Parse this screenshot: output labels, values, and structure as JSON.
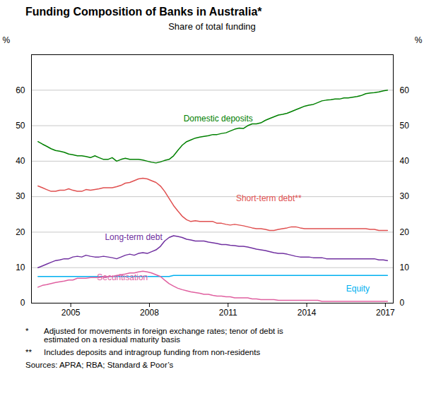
{
  "chart_data": {
    "type": "line",
    "title": "Funding Composition of Banks in Australia*",
    "subtitle": "Share of total funding",
    "ylabel": "%",
    "y2label": "%",
    "xlim": [
      2003.5,
      2017.3
    ],
    "xticks": [
      2005,
      2008,
      2011,
      2014,
      2017
    ],
    "ylim": [
      0,
      70
    ],
    "yticks": [
      0,
      10,
      20,
      30,
      40,
      50,
      60
    ],
    "y2lim": [
      0,
      70
    ],
    "y2ticks": [
      0,
      10,
      20,
      30,
      40,
      50,
      60
    ],
    "grid": true,
    "x": [
      2003.75,
      2003.92,
      2004.08,
      2004.25,
      2004.42,
      2004.58,
      2004.75,
      2004.92,
      2005.08,
      2005.25,
      2005.42,
      2005.58,
      2005.75,
      2005.92,
      2006.08,
      2006.25,
      2006.42,
      2006.58,
      2006.75,
      2006.92,
      2007.08,
      2007.25,
      2007.42,
      2007.58,
      2007.75,
      2007.92,
      2008.08,
      2008.25,
      2008.42,
      2008.58,
      2008.75,
      2008.92,
      2009.08,
      2009.25,
      2009.42,
      2009.58,
      2009.75,
      2009.92,
      2010.08,
      2010.25,
      2010.42,
      2010.58,
      2010.75,
      2010.92,
      2011.08,
      2011.25,
      2011.42,
      2011.58,
      2011.75,
      2011.92,
      2012.08,
      2012.25,
      2012.42,
      2012.58,
      2012.75,
      2012.92,
      2013.08,
      2013.25,
      2013.42,
      2013.58,
      2013.75,
      2013.92,
      2014.08,
      2014.25,
      2014.42,
      2014.58,
      2014.75,
      2014.92,
      2015.08,
      2015.25,
      2015.42,
      2015.58,
      2015.75,
      2015.92,
      2016.08,
      2016.25,
      2016.42,
      2016.58,
      2016.75,
      2016.92,
      2017.08
    ],
    "series": [
      {
        "name": "Domestic deposits",
        "color": "#008000",
        "values": [
          45.5,
          44.8,
          44.2,
          43.5,
          43.0,
          42.8,
          42.5,
          42.0,
          41.8,
          41.5,
          41.5,
          41.3,
          41.0,
          41.5,
          41.0,
          40.5,
          40.5,
          41.0,
          40.0,
          40.5,
          40.8,
          40.5,
          40.5,
          40.5,
          40.3,
          40.0,
          39.7,
          39.5,
          39.8,
          40.2,
          40.5,
          41.5,
          43.0,
          44.5,
          45.5,
          46.0,
          46.5,
          46.8,
          47.0,
          47.2,
          47.5,
          47.5,
          47.8,
          48.0,
          48.5,
          49.0,
          49.3,
          49.2,
          50.0,
          50.5,
          50.5,
          50.8,
          51.5,
          52.0,
          52.5,
          53.0,
          53.2,
          53.5,
          54.0,
          54.5,
          55.0,
          55.5,
          55.8,
          56.0,
          56.5,
          57.0,
          57.2,
          57.3,
          57.5,
          57.5,
          57.8,
          57.8,
          58.0,
          58.2,
          58.5,
          59.0,
          59.2,
          59.3,
          59.5,
          59.8,
          60.0
        ]
      },
      {
        "name": "Short-term debt**",
        "color": "#e05050",
        "values": [
          33.0,
          32.5,
          32.0,
          31.5,
          31.5,
          31.8,
          31.8,
          32.2,
          31.8,
          31.5,
          31.5,
          32.0,
          31.8,
          32.0,
          32.2,
          32.5,
          32.5,
          32.5,
          32.8,
          33.2,
          33.8,
          34.0,
          34.5,
          35.0,
          35.2,
          35.0,
          34.5,
          34.0,
          33.0,
          31.5,
          29.5,
          27.5,
          26.0,
          24.5,
          23.5,
          23.0,
          23.2,
          23.0,
          23.0,
          23.0,
          23.0,
          22.5,
          22.5,
          22.2,
          22.0,
          22.2,
          22.0,
          21.8,
          21.5,
          21.2,
          21.0,
          21.0,
          20.8,
          20.5,
          20.5,
          20.8,
          21.0,
          21.2,
          21.5,
          21.5,
          21.2,
          21.0,
          21.0,
          21.0,
          21.0,
          21.0,
          21.0,
          21.0,
          21.0,
          21.0,
          21.0,
          21.0,
          21.0,
          21.0,
          21.0,
          21.0,
          20.8,
          20.8,
          20.5,
          20.5,
          20.5
        ]
      },
      {
        "name": "Long-term debt",
        "color": "#7030a0",
        "values": [
          10.0,
          10.5,
          11.0,
          11.5,
          12.0,
          12.2,
          12.5,
          12.5,
          13.0,
          13.2,
          13.0,
          13.5,
          13.2,
          13.0,
          13.0,
          13.2,
          13.0,
          12.8,
          12.5,
          13.0,
          13.5,
          13.8,
          13.5,
          14.0,
          14.2,
          14.0,
          14.5,
          15.0,
          16.0,
          17.5,
          18.5,
          19.0,
          18.8,
          18.5,
          18.0,
          17.8,
          17.5,
          17.5,
          17.5,
          17.2,
          17.0,
          16.8,
          16.5,
          16.5,
          16.3,
          16.2,
          16.0,
          16.0,
          15.8,
          15.5,
          15.2,
          15.0,
          14.8,
          14.5,
          14.2,
          14.0,
          14.0,
          13.8,
          13.5,
          13.2,
          13.0,
          13.0,
          13.0,
          12.8,
          12.8,
          12.8,
          12.5,
          12.5,
          12.5,
          12.5,
          12.5,
          12.5,
          12.5,
          12.5,
          12.5,
          12.5,
          12.5,
          12.5,
          12.2,
          12.2,
          12.0
        ]
      },
      {
        "name": "Equity",
        "color": "#00b0f0",
        "values": [
          7.5,
          7.5,
          7.5,
          7.5,
          7.5,
          7.5,
          7.5,
          7.5,
          7.5,
          7.5,
          7.5,
          7.5,
          7.5,
          7.5,
          7.5,
          7.5,
          7.5,
          7.5,
          7.5,
          7.5,
          7.5,
          7.5,
          7.5,
          7.5,
          7.5,
          7.5,
          7.5,
          7.5,
          7.5,
          7.5,
          7.5,
          7.8,
          7.8,
          7.8,
          7.8,
          7.8,
          7.8,
          7.8,
          7.8,
          7.8,
          7.8,
          7.8,
          7.8,
          7.8,
          7.8,
          7.8,
          7.8,
          7.8,
          7.8,
          7.8,
          7.8,
          7.8,
          7.8,
          7.8,
          7.8,
          7.8,
          7.8,
          7.8,
          7.8,
          7.8,
          7.8,
          7.8,
          7.8,
          7.8,
          7.8,
          7.8,
          7.8,
          7.8,
          7.8,
          7.8,
          7.8,
          7.8,
          7.8,
          7.8,
          7.8,
          7.8,
          7.8,
          7.8,
          7.8,
          7.8,
          7.8
        ]
      },
      {
        "name": "Securitisation",
        "color": "#e060a0",
        "values": [
          4.5,
          5.0,
          5.2,
          5.5,
          5.8,
          6.0,
          6.2,
          6.5,
          6.5,
          7.0,
          7.0,
          7.0,
          7.2,
          7.2,
          7.2,
          7.5,
          7.5,
          7.5,
          7.8,
          8.0,
          8.2,
          8.5,
          8.5,
          8.8,
          9.0,
          8.8,
          8.5,
          8.0,
          7.5,
          6.5,
          5.5,
          4.8,
          4.2,
          3.8,
          3.5,
          3.2,
          3.0,
          2.8,
          2.5,
          2.5,
          2.2,
          2.0,
          2.0,
          1.8,
          1.8,
          1.5,
          1.5,
          1.5,
          1.5,
          1.2,
          1.2,
          1.0,
          1.0,
          1.0,
          1.0,
          0.8,
          0.8,
          0.8,
          0.8,
          0.8,
          0.8,
          0.8,
          0.8,
          0.8,
          0.8,
          0.5,
          0.5,
          0.5,
          0.5,
          0.5,
          0.5,
          0.5,
          0.5,
          0.5,
          0.5,
          0.5,
          0.5,
          0.5,
          0.5,
          0.5,
          0.5
        ]
      }
    ],
    "annotations": [
      {
        "text": "Domestic deposits",
        "x": 2009.3,
        "y": 52,
        "color": "#008000"
      },
      {
        "text": "Short-term debt**",
        "x": 2011.3,
        "y": 29.5,
        "color": "#e05050"
      },
      {
        "text": "Long-term debt",
        "x": 2006.3,
        "y": 18.5,
        "color": "#7030a0"
      },
      {
        "text": "Equity",
        "x": 2015.5,
        "y": 4.0,
        "color": "#00b0f0"
      },
      {
        "text": "Securitisation",
        "x": 2006.0,
        "y": 7.2,
        "color": "#e060a0"
      }
    ],
    "footnotes": [
      {
        "symbol": "*",
        "text": "Adjusted for movements in foreign exchange rates; tenor of debt is\nestimated on a residual maturity basis"
      },
      {
        "symbol": "**",
        "text": "Includes deposits and intragroup funding from non-residents"
      }
    ],
    "source": "Sources: APRA; RBA; Standard & Poor’s"
  }
}
